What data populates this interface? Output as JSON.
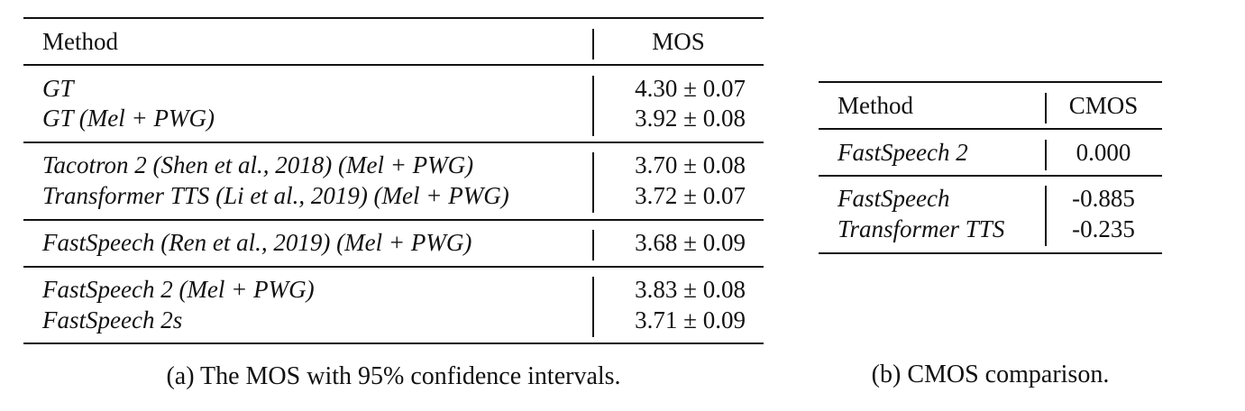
{
  "table_a": {
    "headers": {
      "method": "Method",
      "score": "MOS"
    },
    "groups": [
      {
        "rows": [
          {
            "method": "GT",
            "score": "4.30 ± 0.07"
          },
          {
            "method": "GT (Mel + PWG)",
            "score": "3.92 ± 0.08"
          }
        ]
      },
      {
        "rows": [
          {
            "method": "Tacotron 2 (Shen et al., 2018) (Mel + PWG)",
            "score": "3.70 ± 0.08"
          },
          {
            "method": "Transformer TTS (Li et al., 2019) (Mel + PWG)",
            "score": "3.72 ± 0.07"
          }
        ]
      },
      {
        "rows": [
          {
            "method": "FastSpeech (Ren et al., 2019) (Mel + PWG)",
            "score": "3.68 ± 0.09"
          }
        ]
      },
      {
        "rows": [
          {
            "method": "FastSpeech 2 (Mel + PWG)",
            "score": "3.83 ± 0.08"
          },
          {
            "method": "FastSpeech 2s",
            "score": "3.71 ± 0.09"
          }
        ]
      }
    ],
    "caption": "(a) The MOS with 95% confidence intervals."
  },
  "table_b": {
    "headers": {
      "method": "Method",
      "score": "CMOS"
    },
    "groups": [
      {
        "rows": [
          {
            "method": "FastSpeech 2",
            "score": "0.000"
          }
        ]
      },
      {
        "rows": [
          {
            "method": "FastSpeech",
            "score": "-0.885"
          },
          {
            "method": "Transformer TTS",
            "score": "-0.235"
          }
        ]
      }
    ],
    "caption": "(b) CMOS comparison."
  }
}
